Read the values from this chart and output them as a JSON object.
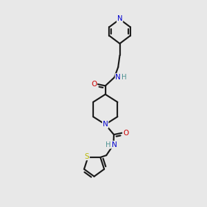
{
  "bg_color": "#e8e8e8",
  "bond_color": "#1a1a1a",
  "nitrogen_color": "#0000cd",
  "oxygen_color": "#cc0000",
  "sulfur_color": "#b8b800",
  "nh_color": "#4a9090",
  "line_width": 1.6,
  "figsize": [
    3.0,
    3.0
  ],
  "dpi": 100,
  "xlim": [
    0,
    10
  ],
  "ylim": [
    0,
    10
  ]
}
